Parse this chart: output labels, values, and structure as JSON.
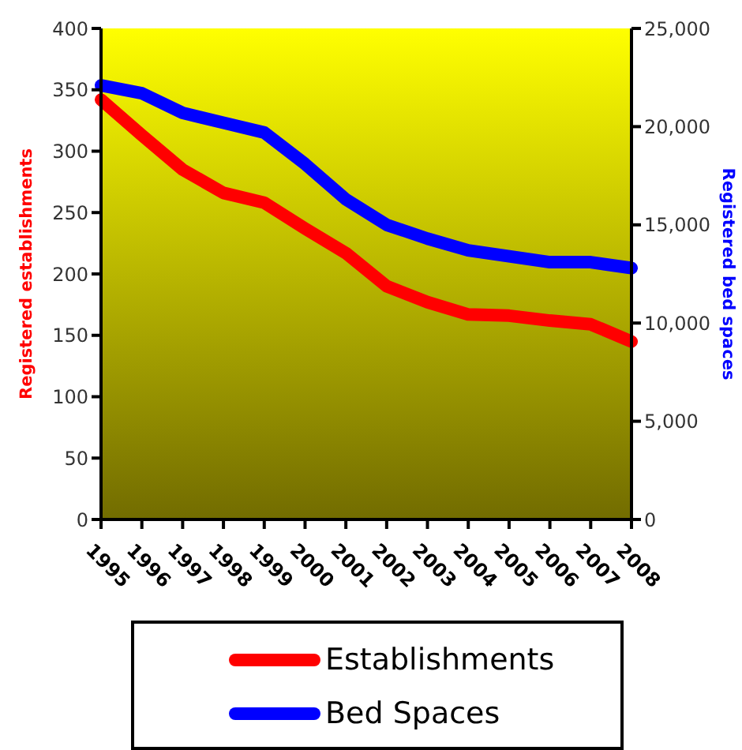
{
  "chart_data": {
    "type": "line",
    "ylabel": "Registered establishments",
    "y2label": "Registered bed spaces",
    "categories": [
      "1995",
      "1996",
      "1997",
      "1998",
      "1999",
      "2000",
      "2001",
      "2002",
      "2003",
      "2004",
      "2005",
      "2006",
      "2007",
      "2008"
    ],
    "series": [
      {
        "name": "Establishments",
        "color": "#ff0000",
        "values": [
          342,
          313,
          285,
          266,
          258,
          237,
          217,
          190,
          177,
          167,
          166,
          162,
          159,
          145
        ]
      },
      {
        "name": "Bed Spaces",
        "color": "#0000ff",
        "axis": "y2",
        "values": [
          22100,
          21700,
          20700,
          20200,
          19700,
          18100,
          16300,
          15000,
          14300,
          13700,
          13400,
          13100,
          13100,
          12800
        ]
      }
    ],
    "ylim": [
      0,
      400
    ],
    "yticks": [
      0,
      50,
      100,
      150,
      200,
      250,
      300,
      350,
      400
    ],
    "y2lim": [
      0,
      25000
    ],
    "y2ticks": [
      {
        "value": 0,
        "label": "0"
      },
      {
        "value": 5000,
        "label": "5,000"
      },
      {
        "value": 10000,
        "label": "10,000"
      },
      {
        "value": 15000,
        "label": "15,000"
      },
      {
        "value": 20000,
        "label": "20,000"
      },
      {
        "value": 25000,
        "label": "25,000"
      }
    ],
    "grid": false,
    "legend": "bottom",
    "marker": "none",
    "line_style": "solid"
  }
}
